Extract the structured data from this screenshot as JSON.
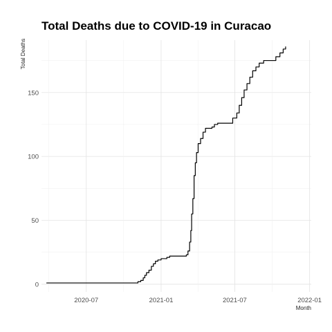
{
  "chart_data": {
    "type": "line",
    "title": "Total Deaths due to COVID-19 in Curacao",
    "xlabel": "Month",
    "ylabel": "Total Deaths",
    "xlim": [
      "2020-03-13",
      "2022-01-05"
    ],
    "ylim": [
      -6,
      191
    ],
    "grid": true,
    "legend": "none",
    "x_ticks": [
      {
        "date": "2020-07-01",
        "label": "2020-07"
      },
      {
        "date": "2021-01-01",
        "label": "2021-01"
      },
      {
        "date": "2021-07-01",
        "label": "2021-07"
      },
      {
        "date": "2022-01-01",
        "label": "2022-01"
      }
    ],
    "y_ticks": [
      0,
      50,
      100,
      150
    ],
    "series": [
      {
        "color": "#000000",
        "points": [
          [
            "2020-03-25",
            1
          ],
          [
            "2020-10-25",
            1
          ],
          [
            "2020-11-01",
            1
          ],
          [
            "2020-11-05",
            2
          ],
          [
            "2020-11-12",
            3
          ],
          [
            "2020-11-18",
            5
          ],
          [
            "2020-11-22",
            7
          ],
          [
            "2020-11-26",
            9
          ],
          [
            "2020-12-02",
            11
          ],
          [
            "2020-12-08",
            14
          ],
          [
            "2020-12-13",
            16
          ],
          [
            "2020-12-18",
            18
          ],
          [
            "2020-12-24",
            19
          ],
          [
            "2021-01-01",
            20
          ],
          [
            "2021-01-15",
            21
          ],
          [
            "2021-01-22",
            22
          ],
          [
            "2021-02-28",
            22
          ],
          [
            "2021-03-04",
            23
          ],
          [
            "2021-03-08",
            26
          ],
          [
            "2021-03-12",
            33
          ],
          [
            "2021-03-15",
            42
          ],
          [
            "2021-03-17",
            55
          ],
          [
            "2021-03-20",
            67
          ],
          [
            "2021-03-23",
            85
          ],
          [
            "2021-03-26",
            95
          ],
          [
            "2021-03-29",
            103
          ],
          [
            "2021-04-02",
            110
          ],
          [
            "2021-04-08",
            114
          ],
          [
            "2021-04-14",
            119
          ],
          [
            "2021-04-20",
            122
          ],
          [
            "2021-05-06",
            123
          ],
          [
            "2021-05-12",
            125
          ],
          [
            "2021-05-20",
            126
          ],
          [
            "2021-06-22",
            126
          ],
          [
            "2021-06-26",
            130
          ],
          [
            "2021-07-06",
            134
          ],
          [
            "2021-07-12",
            140
          ],
          [
            "2021-07-18",
            146
          ],
          [
            "2021-07-24",
            152
          ],
          [
            "2021-07-31",
            157
          ],
          [
            "2021-08-07",
            162
          ],
          [
            "2021-08-14",
            167
          ],
          [
            "2021-08-22",
            170
          ],
          [
            "2021-08-30",
            173
          ],
          [
            "2021-09-10",
            175
          ],
          [
            "2021-10-01",
            175
          ],
          [
            "2021-10-10",
            178
          ],
          [
            "2021-10-20",
            181
          ],
          [
            "2021-10-28",
            184
          ],
          [
            "2021-11-03",
            186
          ]
        ]
      }
    ]
  }
}
